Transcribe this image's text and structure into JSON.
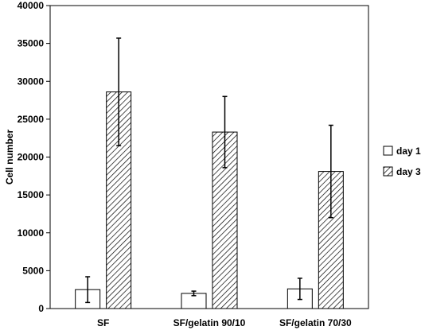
{
  "chart_data": {
    "type": "bar",
    "title": "",
    "xlabel": "",
    "ylabel": "Cell number",
    "ylim": [
      0,
      40000
    ],
    "yticks": [
      0,
      5000,
      10000,
      15000,
      20000,
      25000,
      30000,
      35000,
      40000
    ],
    "categories": [
      "SF",
      "SF/gelatin 90/10",
      "SF/gelatin 70/30"
    ],
    "series": [
      {
        "name": "day 1",
        "fill": "white",
        "values": [
          2500,
          2000,
          2600
        ],
        "errors": [
          1700,
          300,
          1400
        ]
      },
      {
        "name": "day 3",
        "fill": "hatched",
        "values": [
          28600,
          23300,
          18100
        ],
        "errors": [
          7100,
          4700,
          6100
        ]
      }
    ],
    "grid": false,
    "legend_position": "right"
  }
}
